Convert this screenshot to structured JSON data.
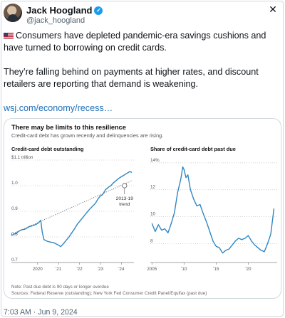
{
  "author": {
    "name": "Jack Hoogland",
    "handle": "@jack_hoogland"
  },
  "tweet": {
    "paragraph1": "Consumers have depleted pandemic-era savings cushions and have turned to borrowing on credit cards.",
    "paragraph2": "They’re falling behind on payments at higher rates, and discount retailers are reporting that demand is weakening.",
    "link": "wsj.com/economy/recess…",
    "timestamp": "7:03 AM · Jun 9, 2024"
  },
  "icons": {
    "close": "close-icon",
    "verified": "verified-badge-icon",
    "flag": "us-flag-icon"
  },
  "colors": {
    "line": "#2f86c4",
    "verified": "#1d9bf0",
    "link": "#1d6fb8"
  },
  "card": {
    "title": "There may be limits to this resilience",
    "subtitle": "Credit-card debt has grown recently and delinquencies are rising.",
    "note": "Note: Past due debt is 90 days or longer overdue",
    "sources": "Sources: Federal Reserve (outstanding); New York Fed Consumer Credit Panel/Equifax (past due)"
  },
  "chart_data": [
    {
      "type": "line",
      "title": "Credit-card debt outstanding",
      "yticks": [
        "$1.1 trillion",
        "1.0",
        "0.9",
        "0.8",
        "0.7"
      ],
      "ytick_values": [
        1.1,
        1.0,
        0.9,
        0.8,
        0.7
      ],
      "xticks": [
        "2020",
        "'21",
        "'22",
        "'23",
        "'24"
      ],
      "xtick_values": [
        2020,
        2021,
        2022,
        2023,
        2024
      ],
      "xlim": [
        2018.75,
        2024.6
      ],
      "ylim": [
        0.7,
        1.1
      ],
      "annotation": [
        "2013-19",
        "trend"
      ],
      "series": [
        {
          "x": [
            2018.75,
            2018.9,
            2019.0,
            2019.1,
            2019.25,
            2019.4,
            2019.5,
            2019.6,
            2019.75,
            2019.85,
            2019.95,
            2020.05,
            2020.15,
            2020.22,
            2020.3,
            2020.4,
            2020.5,
            2020.6,
            2020.75,
            2020.9,
            2021.0,
            2021.1,
            2021.25,
            2021.4,
            2021.5,
            2021.6,
            2021.75,
            2021.9,
            2022.0,
            2022.15,
            2022.3,
            2022.45,
            2022.6,
            2022.75,
            2022.9,
            2023.0,
            2023.1,
            2023.25,
            2023.4,
            2023.5,
            2023.6,
            2023.75,
            2023.9,
            2024.0,
            2024.1,
            2024.2,
            2024.3,
            2024.4,
            2024.5
          ],
          "y": [
            0.805,
            0.812,
            0.815,
            0.822,
            0.828,
            0.83,
            0.835,
            0.84,
            0.843,
            0.846,
            0.85,
            0.855,
            0.865,
            0.82,
            0.79,
            0.785,
            0.782,
            0.78,
            0.778,
            0.772,
            0.768,
            0.762,
            0.775,
            0.79,
            0.8,
            0.812,
            0.83,
            0.85,
            0.86,
            0.875,
            0.89,
            0.905,
            0.918,
            0.93,
            0.95,
            0.96,
            0.965,
            0.985,
            0.995,
            1.0,
            1.01,
            1.02,
            1.03,
            1.035,
            1.04,
            1.045,
            1.05,
            1.055,
            1.052
          ]
        },
        {
          "name": "2013-19 trend",
          "style": "dotted",
          "x": [
            2018.75,
            2024.5
          ],
          "y": [
            0.81,
            1.02
          ]
        }
      ]
    },
    {
      "type": "line",
      "title": "Share of credit-card debt past due",
      "yticks": [
        "14%",
        "12",
        "10",
        "8"
      ],
      "ytick_values": [
        14,
        12,
        10,
        8
      ],
      "xticks": [
        "2005",
        "'10",
        "'15",
        "'20"
      ],
      "xtick_values": [
        2005,
        2010,
        2015,
        2020
      ],
      "xlim": [
        2004.75,
        2024.5
      ],
      "ylim": [
        6.6,
        14.2
      ],
      "series": [
        {
          "x": [
            2005.0,
            2005.5,
            2006.0,
            2006.5,
            2007.0,
            2007.5,
            2008.0,
            2008.5,
            2009.0,
            2009.5,
            2009.8,
            2010.0,
            2010.3,
            2010.6,
            2011.0,
            2011.5,
            2012.0,
            2012.5,
            2013.0,
            2013.5,
            2014.0,
            2014.5,
            2015.0,
            2015.5,
            2016.0,
            2016.5,
            2017.0,
            2017.5,
            2018.0,
            2018.5,
            2019.0,
            2019.5,
            2020.0,
            2020.5,
            2021.0,
            2021.5,
            2022.0,
            2022.5,
            2023.0,
            2023.5,
            2024.0
          ],
          "y": [
            9.5,
            8.9,
            9.4,
            9.0,
            9.1,
            8.8,
            9.5,
            10.3,
            11.8,
            12.8,
            13.7,
            13.5,
            12.9,
            13.1,
            12.0,
            11.3,
            10.8,
            10.9,
            10.2,
            9.6,
            8.9,
            8.2,
            7.8,
            7.7,
            7.3,
            7.5,
            7.6,
            7.9,
            8.2,
            8.4,
            8.3,
            8.4,
            8.6,
            8.2,
            7.9,
            7.7,
            7.5,
            7.4,
            8.0,
            8.7,
            10.6
          ]
        }
      ]
    }
  ]
}
